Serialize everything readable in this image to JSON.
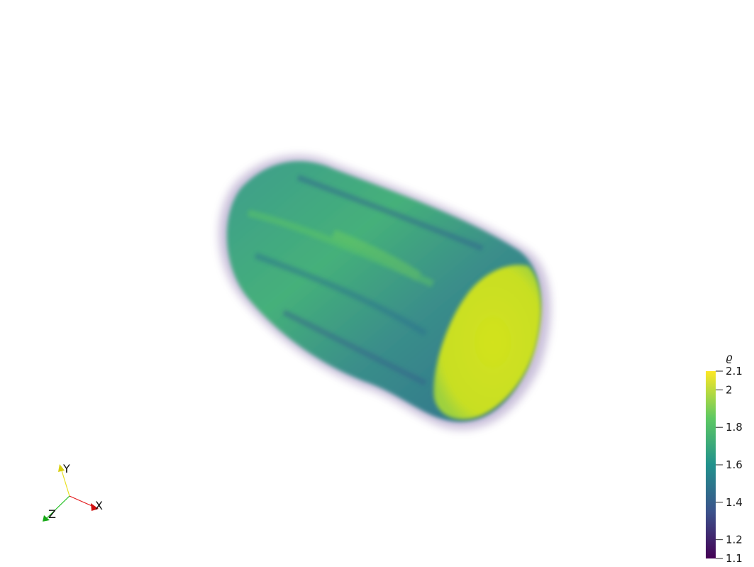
{
  "colorbar": {
    "title": "ϱ",
    "ticks": [
      "2.1",
      "2",
      "1.8",
      "1.6",
      "1.4",
      "1.2",
      "1.1"
    ],
    "range": [
      1.1,
      2.1
    ],
    "colormap": [
      "#440154",
      "#3b528b",
      "#21918c",
      "#5ec962",
      "#fde725"
    ]
  },
  "axes": {
    "x_label": "X",
    "y_label": "Y",
    "z_label": "Z",
    "x_color": "#e31a1c",
    "y_color": "#e8e020",
    "z_color": "#1fbf1f"
  },
  "scene": {
    "object": "volume-rendered cylinder",
    "face_color": "#cde21f",
    "body_color": "#3fae82",
    "edge_color": "#7a5a9a"
  }
}
